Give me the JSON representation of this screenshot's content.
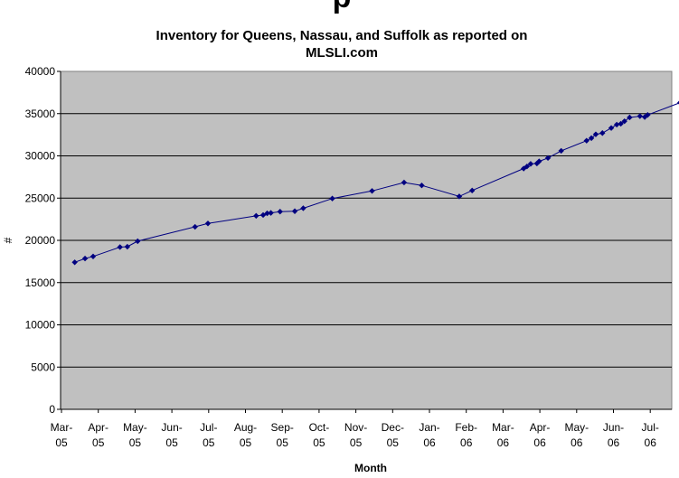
{
  "chart_data": {
    "type": "line",
    "title_cut": "p",
    "title_line1": "Inventory for Queens, Nassau, and Suffolk as reported on",
    "title_line2": "MLSLI.com",
    "xlabel": "Month",
    "ylabel": "#",
    "ylim": [
      0,
      40000
    ],
    "yticks": [
      "0",
      "5000",
      "10000",
      "15000",
      "20000",
      "25000",
      "30000",
      "35000",
      "40000"
    ],
    "xlim": [
      0,
      17
    ],
    "xticks": [
      [
        "Mar-",
        "05"
      ],
      [
        "Apr-",
        "05"
      ],
      [
        "May-",
        "05"
      ],
      [
        "Jun-",
        "05"
      ],
      [
        "Jul-",
        "05"
      ],
      [
        "Aug-",
        "05"
      ],
      [
        "Sep-",
        "05"
      ],
      [
        "Oct-",
        "05"
      ],
      [
        "Nov-",
        "05"
      ],
      [
        "Dec-",
        "05"
      ],
      [
        "Jan-",
        "06"
      ],
      [
        "Feb-",
        "06"
      ],
      [
        "Mar-",
        "06"
      ],
      [
        "Apr-",
        "06"
      ],
      [
        "May-",
        "06"
      ],
      [
        "Jun-",
        "06"
      ],
      [
        "Jul-",
        "06"
      ]
    ],
    "grid": true,
    "legend": "none",
    "colors": {
      "plot_bg": "#c0c0c0",
      "series": "#000080",
      "grid": "#000000"
    },
    "series": [
      {
        "points": [
          [
            0.36,
            17400
          ],
          [
            0.64,
            17850
          ],
          [
            0.86,
            18100
          ],
          [
            1.59,
            19200
          ],
          [
            1.79,
            19250
          ],
          [
            2.07,
            19900
          ],
          [
            3.63,
            21600
          ],
          [
            3.98,
            22000
          ],
          [
            5.29,
            22900
          ],
          [
            5.48,
            23000
          ],
          [
            5.59,
            23200
          ],
          [
            5.69,
            23250
          ],
          [
            5.94,
            23400
          ],
          [
            6.34,
            23450
          ],
          [
            6.57,
            23800
          ],
          [
            7.36,
            24950
          ],
          [
            8.44,
            25850
          ],
          [
            9.31,
            26850
          ],
          [
            9.79,
            26500
          ],
          [
            10.81,
            25200
          ],
          [
            11.16,
            25900
          ],
          [
            12.56,
            28500
          ],
          [
            12.65,
            28750
          ],
          [
            12.75,
            29050
          ],
          [
            12.92,
            29100
          ],
          [
            12.98,
            29350
          ],
          [
            13.22,
            29750
          ],
          [
            13.58,
            30600
          ],
          [
            14.27,
            31800
          ],
          [
            14.4,
            32100
          ],
          [
            14.52,
            32550
          ],
          [
            14.7,
            32700
          ],
          [
            14.94,
            33300
          ],
          [
            15.09,
            33700
          ],
          [
            15.2,
            33800
          ],
          [
            15.3,
            34100
          ],
          [
            15.44,
            34550
          ],
          [
            15.72,
            34700
          ],
          [
            15.85,
            34600
          ],
          [
            15.93,
            34850
          ],
          [
            16.81,
            36300
          ],
          [
            17.02,
            37200
          ]
        ]
      }
    ]
  }
}
